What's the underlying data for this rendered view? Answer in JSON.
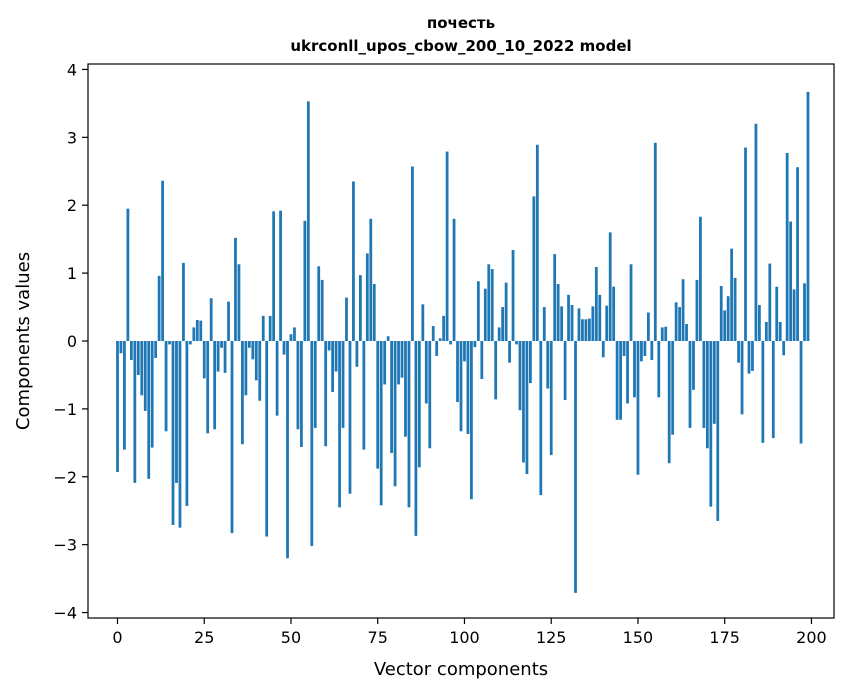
{
  "chart_data": {
    "type": "bar",
    "title_lines": [
      "почесть",
      "ukrconll_upos_cbow_200_10_2022 model"
    ],
    "xlabel": "Vector components",
    "ylabel": "Components values",
    "xlim": [
      -8.5,
      206.5
    ],
    "ylim": [
      -4.08,
      4.08
    ],
    "xticks": [
      0,
      25,
      50,
      75,
      100,
      125,
      150,
      175,
      200
    ],
    "xtick_labels": [
      "0",
      "25",
      "50",
      "75",
      "100",
      "125",
      "150",
      "175",
      "200"
    ],
    "yticks": [
      -4,
      -3,
      -2,
      -1,
      0,
      1,
      2,
      3,
      4
    ],
    "ytick_labels": [
      "−4",
      "−3",
      "−2",
      "−1",
      "0",
      "1",
      "2",
      "3",
      "4"
    ],
    "bar_color": "#1f77b4",
    "grid": false,
    "x": [
      0,
      1,
      2,
      3,
      4,
      5,
      6,
      7,
      8,
      9,
      10,
      11,
      12,
      13,
      14,
      15,
      16,
      17,
      18,
      19,
      20,
      21,
      22,
      23,
      24,
      25,
      26,
      27,
      28,
      29,
      30,
      31,
      32,
      33,
      34,
      35,
      36,
      37,
      38,
      39,
      40,
      41,
      42,
      43,
      44,
      45,
      46,
      47,
      48,
      49,
      50,
      51,
      52,
      53,
      54,
      55,
      56,
      57,
      58,
      59,
      60,
      61,
      62,
      63,
      64,
      65,
      66,
      67,
      68,
      69,
      70,
      71,
      72,
      73,
      74,
      75,
      76,
      77,
      78,
      79,
      80,
      81,
      82,
      83,
      84,
      85,
      86,
      87,
      88,
      89,
      90,
      91,
      92,
      93,
      94,
      95,
      96,
      97,
      98,
      99,
      100,
      101,
      102,
      103,
      104,
      105,
      106,
      107,
      108,
      109,
      110,
      111,
      112,
      113,
      114,
      115,
      116,
      117,
      118,
      119,
      120,
      121,
      122,
      123,
      124,
      125,
      126,
      127,
      128,
      129,
      130,
      131,
      132,
      133,
      134,
      135,
      136,
      137,
      138,
      139,
      140,
      141,
      142,
      143,
      144,
      145,
      146,
      147,
      148,
      149,
      150,
      151,
      152,
      153,
      154,
      155,
      156,
      157,
      158,
      159,
      160,
      161,
      162,
      163,
      164,
      165,
      166,
      167,
      168,
      169,
      170,
      171,
      172,
      173,
      174,
      175,
      176,
      177,
      178,
      179,
      180,
      181,
      182,
      183,
      184,
      185,
      186,
      187,
      188,
      189,
      190,
      191,
      192,
      193,
      194,
      195,
      196,
      197,
      198,
      199
    ],
    "values": [
      -1.93,
      -0.18,
      -1.6,
      1.95,
      -0.28,
      -2.09,
      -0.5,
      -0.8,
      -1.03,
      -2.03,
      -1.57,
      -0.25,
      0.96,
      2.36,
      -1.33,
      -0.05,
      -2.71,
      -2.09,
      -2.75,
      1.15,
      -2.43,
      -0.05,
      0.2,
      0.31,
      0.3,
      -0.55,
      -1.36,
      0.63,
      -1.3,
      -0.45,
      -0.1,
      -0.47,
      0.58,
      -2.83,
      1.52,
      1.13,
      -1.52,
      -0.8,
      -0.1,
      -0.27,
      -0.58,
      -0.88,
      0.37,
      -2.88,
      0.37,
      1.91,
      -1.1,
      1.92,
      -0.2,
      -3.2,
      0.1,
      0.2,
      -1.3,
      -1.56,
      1.77,
      3.53,
      -3.02,
      -1.28,
      1.1,
      0.9,
      -1.55,
      -0.14,
      -0.75,
      -0.45,
      -2.45,
      -1.28,
      0.64,
      -2.25,
      2.35,
      -0.38,
      0.97,
      -1.6,
      1.29,
      1.8,
      0.84,
      -1.88,
      -2.42,
      -0.64,
      0.07,
      -1.65,
      -2.14,
      -0.64,
      -0.54,
      -1.41,
      -2.45,
      2.57,
      -2.87,
      -1.86,
      0.54,
      -0.92,
      -1.58,
      0.22,
      -0.22,
      0.04,
      0.37,
      2.79,
      -0.05,
      1.8,
      -0.9,
      -1.33,
      -0.3,
      -1.37,
      -2.33,
      -0.09,
      0.88,
      -0.56,
      0.77,
      1.13,
      1.06,
      -0.86,
      0.2,
      0.5,
      0.86,
      -0.32,
      1.34,
      -0.05,
      -1.02,
      -1.79,
      -1.96,
      -0.62,
      2.13,
      2.89,
      -2.27,
      0.5,
      -0.7,
      -1.68,
      1.28,
      0.84,
      0.51,
      -0.87,
      0.68,
      0.53,
      -3.71,
      0.48,
      0.32,
      0.32,
      0.33,
      0.51,
      1.09,
      0.68,
      -0.24,
      0.52,
      1.6,
      0.8,
      -1.16,
      -1.16,
      -0.22,
      -0.92,
      1.13,
      -0.83,
      -1.97,
      -0.3,
      -0.22,
      0.42,
      -0.28,
      2.92,
      -0.83,
      0.2,
      0.21,
      -1.8,
      -1.38,
      0.57,
      0.5,
      0.91,
      0.25,
      -1.28,
      -0.72,
      0.9,
      1.83,
      -1.28,
      -1.58,
      -2.44,
      -1.22,
      -2.65,
      0.81,
      0.45,
      0.66,
      1.36,
      0.93,
      -0.32,
      -1.08,
      2.85,
      -0.48,
      -0.44,
      3.2,
      0.53,
      -1.5,
      0.28,
      1.14,
      -1.43,
      0.8,
      0.28,
      -0.21,
      2.77,
      1.76,
      0.76,
      2.56,
      -1.51,
      0.85,
      3.67
    ]
  }
}
